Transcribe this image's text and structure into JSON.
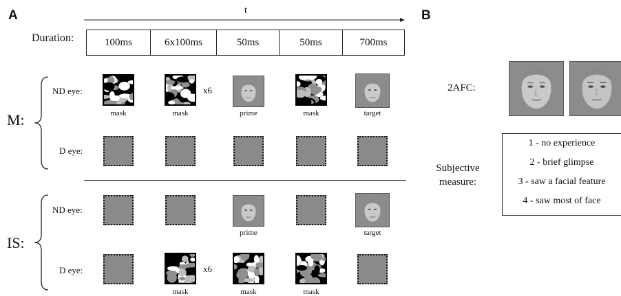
{
  "panel_a": {
    "letter": "A",
    "time_label": "t",
    "duration_label": "Duration:",
    "durations": [
      "100ms",
      "6x100ms",
      "50ms",
      "50ms",
      "700ms"
    ],
    "conditions": [
      {
        "label": "M:",
        "rows": [
          {
            "eye": "ND eye:",
            "repeat": "x6",
            "cells": [
              {
                "kind": "mask",
                "caption": "mask"
              },
              {
                "kind": "mask",
                "caption": "mask"
              },
              {
                "kind": "face",
                "caption": "prime"
              },
              {
                "kind": "mask",
                "caption": "mask"
              },
              {
                "kind": "face",
                "caption": "target"
              }
            ]
          },
          {
            "eye": "D eye:",
            "repeat": "",
            "cells": [
              {
                "kind": "blank",
                "caption": ""
              },
              {
                "kind": "blank",
                "caption": ""
              },
              {
                "kind": "blank",
                "caption": ""
              },
              {
                "kind": "blank",
                "caption": ""
              },
              {
                "kind": "blank",
                "caption": ""
              }
            ]
          }
        ]
      },
      {
        "label": "IS:",
        "rows": [
          {
            "eye": "ND eye:",
            "repeat": "",
            "cells": [
              {
                "kind": "blank",
                "caption": ""
              },
              {
                "kind": "blank",
                "caption": ""
              },
              {
                "kind": "face",
                "caption": "prime"
              },
              {
                "kind": "blank",
                "caption": ""
              },
              {
                "kind": "face",
                "caption": "target"
              }
            ]
          },
          {
            "eye": "D eye:",
            "repeat": "x6",
            "cells": [
              {
                "kind": "blank",
                "caption": ""
              },
              {
                "kind": "mask",
                "caption": "mask"
              },
              {
                "kind": "mask",
                "caption": "mask"
              },
              {
                "kind": "mask",
                "caption": "mask"
              },
              {
                "kind": "blank",
                "caption": ""
              }
            ]
          }
        ]
      }
    ]
  },
  "panel_b": {
    "letter": "B",
    "task_label": "2AFC:",
    "subjective_line1": "Subjective",
    "subjective_line2": "measure:",
    "ratings": [
      "1 - no experience",
      "2 - brief glimpse",
      "3 - saw a facial feature",
      "4 - saw most of face"
    ]
  },
  "colors": {
    "gray_square": "#8a8a8a",
    "face_background": "#8c8c8c",
    "mask_black": "#000000",
    "mask_gray": "#8f8f8f"
  }
}
